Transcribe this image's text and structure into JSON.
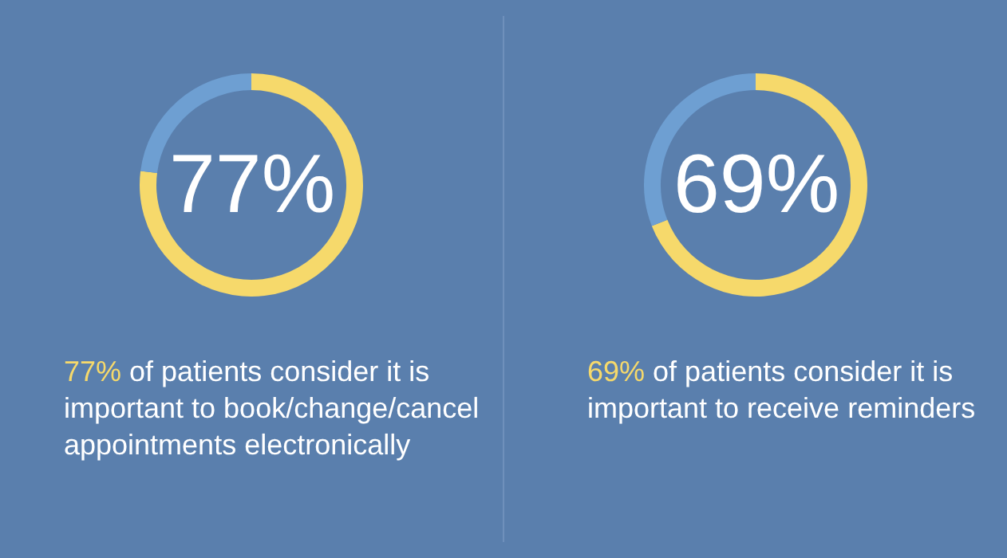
{
  "chart_data": [
    {
      "type": "donut",
      "categories": [
        null,
        null
      ],
      "values": [
        77,
        23
      ],
      "colors": [
        "#f6d96b",
        "#6e9fd2"
      ],
      "value_labels": [
        "77%",
        null
      ],
      "annotations": [
        "77%",
        " of patients consider it is important to book/change/cancel appointments electronically"
      ]
    },
    {
      "type": "donut",
      "categories": [
        null,
        null
      ],
      "values": [
        69,
        31
      ],
      "colors": [
        "#f6d96b",
        "#6e9fd2"
      ],
      "value_labels": [
        "69%",
        null
      ],
      "annotations": [
        "69%",
        " of patients consider it is important to receive reminders"
      ]
    }
  ]
}
